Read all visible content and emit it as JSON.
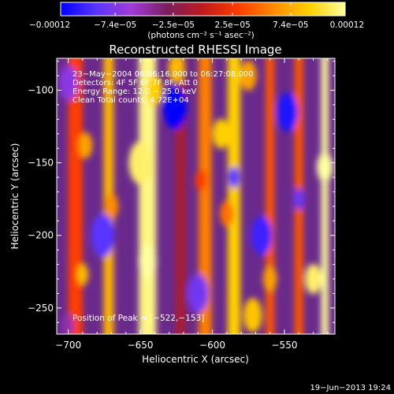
{
  "chart_data": {
    "type": "heatmap",
    "title": "Reconstructed RHESSI Image",
    "xlabel": "Heliocentric X (arcsec)",
    "ylabel": "Heliocentric Y (arcsec)",
    "xlim": [
      -708,
      -515
    ],
    "ylim": [
      -268,
      -78
    ],
    "xticks": [
      -700,
      -650,
      -600,
      -550
    ],
    "yticks": [
      -100,
      -150,
      -200,
      -250
    ],
    "xtick_labels": [
      "−700",
      "−650",
      "−600",
      "−550"
    ],
    "ytick_labels": [
      "−100",
      "−150",
      "−200",
      "−250"
    ],
    "colorbar": {
      "range": [
        -0.00012,
        0.00012
      ],
      "tick_values": [
        -0.00012,
        -7.4e-05,
        -2.5e-05,
        2.5e-05,
        7.4e-05,
        0.00012
      ],
      "tick_labels": [
        "−0.00012",
        "−7.4e−05",
        "−2.5e−05",
        "2.5e−05",
        "7.4e−05",
        "0.00012"
      ],
      "units_label": "(photons cm⁻² s⁻¹ asec⁻²)",
      "colors": [
        "#0000ff",
        "#5a36ff",
        "#a23ad6",
        "#7a1e5e",
        "#c01a1a",
        "#ff3c00",
        "#ff8c00",
        "#ffd000",
        "#ffffa0"
      ]
    },
    "annotations": [
      "23−May−2004 06:06:16.000 to 06:27:08.000",
      "Detectors: 4F 5F 6F 7F 8F, Att 0",
      "Energy Range: 12.0 − 25.0 keV",
      "Clean     Total counts: 4.72E+04"
    ],
    "peak_label": "Position of Peak = [−522,−153]",
    "peak": {
      "x": -522,
      "y": -153
    },
    "timestamp": "19−Jun−2013 19:24",
    "bands": [
      {
        "x": -695,
        "width": 10,
        "value": 3e-05
      },
      {
        "x": -672,
        "width": 7,
        "value": 8e-05
      },
      {
        "x": -645,
        "width": 12,
        "value": 0.000115
      },
      {
        "x": -622,
        "width": 7,
        "value": -1e-05
      },
      {
        "x": -605,
        "width": 9,
        "value": 5.5e-05
      },
      {
        "x": -585,
        "width": 9,
        "value": 9e-05
      },
      {
        "x": -560,
        "width": 6,
        "value": 4e-05
      },
      {
        "x": -540,
        "width": 6,
        "value": 4e-05
      },
      {
        "x": -522,
        "width": 5,
        "value": 0.00012
      }
    ],
    "spots": [
      {
        "x": -645,
        "y": -218,
        "r": 8,
        "value": 0.00012
      },
      {
        "x": -650,
        "y": -150,
        "r": 10,
        "value": 0.00011
      },
      {
        "x": -640,
        "y": -100,
        "r": 7,
        "value": 9e-05
      },
      {
        "x": -688,
        "y": -138,
        "r": 6,
        "value": 7e-05
      },
      {
        "x": -690,
        "y": -227,
        "r": 5,
        "value": 8e-05
      },
      {
        "x": -670,
        "y": -180,
        "r": 6,
        "value": 6e-05
      },
      {
        "x": -625,
        "y": -85,
        "r": 7,
        "value": 8e-05
      },
      {
        "x": -594,
        "y": -130,
        "r": 7,
        "value": 9e-05
      },
      {
        "x": -590,
        "y": -185,
        "r": 6,
        "value": 5e-05
      },
      {
        "x": -572,
        "y": -255,
        "r": 8,
        "value": 8.5e-05
      },
      {
        "x": -560,
        "y": -230,
        "r": 6,
        "value": 7e-05
      },
      {
        "x": -522,
        "y": -153,
        "r": 7,
        "value": 0.00012
      },
      {
        "x": -530,
        "y": -230,
        "r": 7,
        "value": 0.00011
      },
      {
        "x": -626,
        "y": -112,
        "r": 10,
        "value": -0.00012
      },
      {
        "x": -676,
        "y": -200,
        "r": 10,
        "value": -9e-05
      },
      {
        "x": -548,
        "y": -115,
        "r": 9,
        "value": -0.00011
      },
      {
        "x": -566,
        "y": -200,
        "r": 9,
        "value": -0.0001
      },
      {
        "x": -610,
        "y": -240,
        "r": 9,
        "value": -8e-05
      },
      {
        "x": -700,
        "y": -95,
        "r": 8,
        "value": -7e-05
      },
      {
        "x": -585,
        "y": -160,
        "r": 5,
        "value": -9e-05
      },
      {
        "x": -540,
        "y": -175,
        "r": 5,
        "value": -8e-05
      },
      {
        "x": -700,
        "y": -262,
        "r": 5,
        "value": -5e-05
      },
      {
        "x": -575,
        "y": -90,
        "r": 7,
        "value": 7e-05
      },
      {
        "x": -608,
        "y": -162,
        "r": 5,
        "value": 3e-05
      }
    ]
  }
}
